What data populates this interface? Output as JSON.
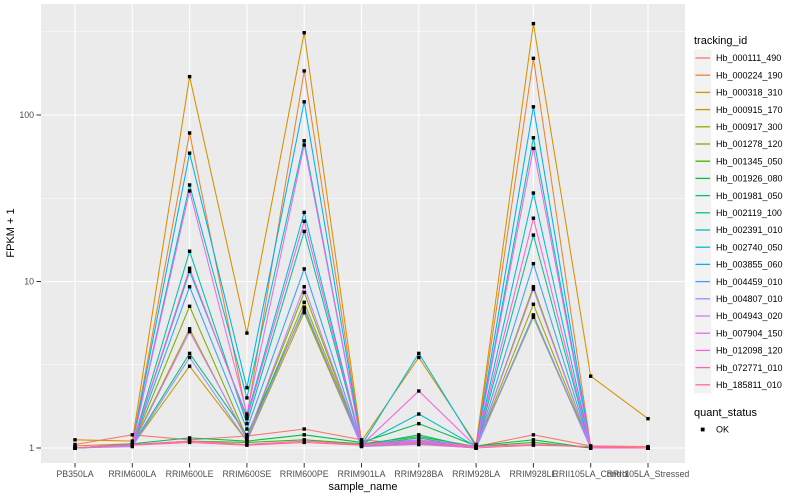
{
  "figure": {
    "background": "#FFFFFF",
    "panel_background": "#EBEBEB",
    "grid_color": "#FFFFFF",
    "tick_color": "#333333",
    "axis_text_color": "#4D4D4D",
    "point_color": "#000000"
  },
  "legend": {
    "tracking_title": "tracking_id",
    "quant_title": "quant_status",
    "key_background": "#F2F2F2",
    "quant_items": [
      {
        "label": "OK"
      }
    ]
  },
  "chart_data": {
    "type": "line",
    "title": "",
    "xlabel": "sample_name",
    "ylabel": "FPKM + 1",
    "y_scale": "log10",
    "y_ticks": [
      1,
      10,
      100
    ],
    "y_minor_gridlines": [
      3.162,
      31.623,
      316.228
    ],
    "ylim": [
      1,
      470
    ],
    "grid": true,
    "legend_position": "right",
    "point_shape": "filled-square",
    "quant_status": "OK",
    "categories": [
      "PB350LA",
      "RRIM600LA",
      "RRIM600LE",
      "RRIM600SE",
      "RRIM600PE",
      "RRIM901LA",
      "RRIM928BA",
      "RRIM928LA",
      "RRIM928LE",
      "RRII105LA_Control",
      "RRII105LA_Stressed"
    ],
    "series": [
      {
        "name": "Hb_000111_490",
        "color": "#F8766D",
        "values": [
          1.05,
          1.2,
          1.12,
          1.18,
          1.3,
          1.12,
          1.05,
          1.02,
          1.2,
          1.03,
          1.02
        ]
      },
      {
        "name": "Hb_000224_190",
        "color": "#EA8331",
        "values": [
          1.03,
          1.06,
          78,
          1.55,
          184,
          1.06,
          1.12,
          1.02,
          219,
          1.02,
          1.0
        ]
      },
      {
        "name": "Hb_000318_310",
        "color": "#D89000",
        "values": [
          1.12,
          1.1,
          170,
          4.9,
          312,
          1.1,
          3.5,
          1.05,
          354,
          2.7,
          1.5
        ]
      },
      {
        "name": "Hb_000915_170",
        "color": "#C09B00",
        "values": [
          1.0,
          1.03,
          3.1,
          1.1,
          6.5,
          1.03,
          1.08,
          1.0,
          6.1,
          1.0,
          1.0
        ]
      },
      {
        "name": "Hb_000917_300",
        "color": "#A3A500",
        "values": [
          1.0,
          1.04,
          5.2,
          1.12,
          7.5,
          1.04,
          1.1,
          1.0,
          7.3,
          1.0,
          1.0
        ]
      },
      {
        "name": "Hb_001278_120",
        "color": "#7CAE00",
        "values": [
          1.0,
          1.03,
          7.1,
          1.15,
          8.6,
          1.03,
          1.06,
          1.0,
          9.3,
          1.0,
          1.0
        ]
      },
      {
        "name": "Hb_001345_050",
        "color": "#39B600",
        "values": [
          1.0,
          1.05,
          1.1,
          1.08,
          1.12,
          1.06,
          1.17,
          1.02,
          1.08,
          1.0,
          1.0
        ]
      },
      {
        "name": "Hb_001926_080",
        "color": "#00BB4E",
        "values": [
          1.0,
          1.06,
          1.15,
          1.1,
          1.2,
          1.08,
          1.4,
          1.03,
          1.12,
          1.0,
          1.0
        ]
      },
      {
        "name": "Hb_001981_050",
        "color": "#00BF7D",
        "values": [
          1.0,
          1.04,
          3.7,
          1.2,
          6.8,
          1.04,
          1.2,
          1.0,
          6.3,
          1.0,
          1.0
        ]
      },
      {
        "name": "Hb_002119_100",
        "color": "#00C1A3",
        "values": [
          1.0,
          1.04,
          15.2,
          1.4,
          20,
          1.04,
          1.15,
          1.0,
          19,
          1.0,
          1.0
        ]
      },
      {
        "name": "Hb_002391_010",
        "color": "#00BFC4",
        "values": [
          1.0,
          1.05,
          38,
          2.0,
          70,
          1.05,
          1.6,
          1.02,
          73,
          1.0,
          1.0
        ]
      },
      {
        "name": "Hb_002740_050",
        "color": "#00BAE0",
        "values": [
          1.0,
          1.04,
          11.5,
          1.55,
          26,
          1.04,
          3.7,
          1.02,
          34,
          1.0,
          1.0
        ]
      },
      {
        "name": "Hb_003855_060",
        "color": "#00B0F6",
        "values": [
          1.0,
          1.05,
          59,
          2.3,
          120,
          1.05,
          1.1,
          1.02,
          112,
          1.0,
          1.0
        ]
      },
      {
        "name": "Hb_004459_010",
        "color": "#35A2FF",
        "values": [
          1.0,
          1.03,
          9.3,
          1.3,
          11.9,
          1.03,
          1.08,
          1.0,
          12.8,
          1.0,
          1.0
        ]
      },
      {
        "name": "Hb_004807_010",
        "color": "#9590FF",
        "values": [
          1.0,
          1.02,
          3.5,
          1.1,
          7.0,
          1.02,
          1.05,
          1.0,
          6.2,
          1.0,
          1.0
        ]
      },
      {
        "name": "Hb_004943_020",
        "color": "#C77CFF",
        "values": [
          1.0,
          1.03,
          5.0,
          1.15,
          9.3,
          1.03,
          1.1,
          1.0,
          9.0,
          1.0,
          1.0
        ]
      },
      {
        "name": "Hb_007904_150",
        "color": "#E76BF3",
        "values": [
          1.0,
          1.05,
          35,
          1.6,
          66,
          1.05,
          1.12,
          1.02,
          63,
          1.0,
          1.0
        ]
      },
      {
        "name": "Hb_012098_120",
        "color": "#FA62DB",
        "values": [
          1.0,
          1.04,
          12,
          1.5,
          23,
          1.04,
          2.2,
          1.02,
          24,
          1.0,
          1.0
        ]
      },
      {
        "name": "Hb_072771_010",
        "color": "#FF62BC",
        "values": [
          1.0,
          1.05,
          1.1,
          1.05,
          1.1,
          1.05,
          1.08,
          1.02,
          1.05,
          1.02,
          1.0
        ]
      },
      {
        "name": "Hb_185811_010",
        "color": "#FF6A98",
        "values": [
          1.0,
          1.04,
          1.08,
          1.04,
          1.08,
          1.04,
          1.06,
          1.0,
          1.04,
          1.02,
          1.0
        ]
      }
    ]
  }
}
